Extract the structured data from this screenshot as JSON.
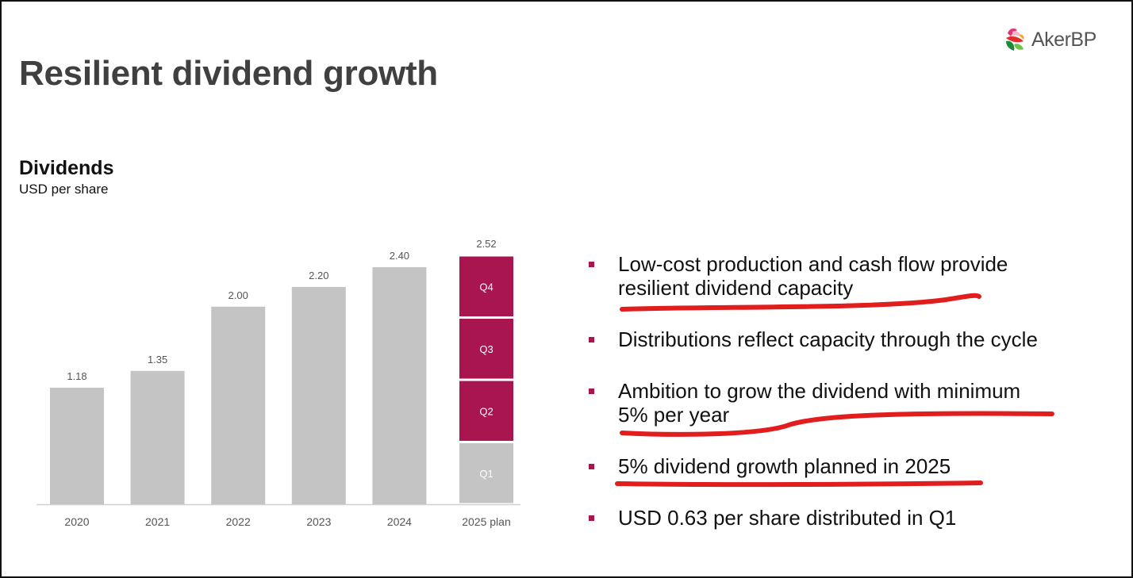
{
  "slide": {
    "title": "Resilient dividend growth",
    "logo_text": "AkerBP"
  },
  "chart_header": {
    "title": "Dividends",
    "subtitle": "USD per share"
  },
  "colors": {
    "bar_gray": "#c4c4c4",
    "bar_accent": "#a8154f",
    "axis_text": "#555555",
    "annotation_red": "#e11d1d",
    "bullet_marker": "#a8154f"
  },
  "chart_data": {
    "type": "bar",
    "title": "Dividends",
    "ylabel": "USD per share",
    "categories": [
      "2020",
      "2021",
      "2022",
      "2023",
      "2024",
      "2025 plan"
    ],
    "values": [
      1.18,
      1.35,
      2.0,
      2.2,
      2.4,
      2.52
    ],
    "value_labels": [
      "1.18",
      "1.35",
      "2.00",
      "2.20",
      "2.40",
      "2.52"
    ],
    "stacked_segments": {
      "category": "2025 plan",
      "series": [
        {
          "name": "Q1",
          "value": 0.63,
          "color": "#c4c4c4"
        },
        {
          "name": "Q2",
          "value": 0.63,
          "color": "#a8154f"
        },
        {
          "name": "Q3",
          "value": 0.63,
          "color": "#a8154f"
        },
        {
          "name": "Q4",
          "value": 0.63,
          "color": "#a8154f"
        }
      ]
    },
    "ylim": [
      0,
      2.52
    ],
    "grid": false,
    "legend": "none"
  },
  "bullets": [
    {
      "text_lines": [
        "Low-cost production and cash flow provide",
        "resilient dividend capacity"
      ],
      "underlined": true
    },
    {
      "text_lines": [
        "Distributions reflect capacity through the cycle"
      ],
      "underlined": false
    },
    {
      "text_lines": [
        "Ambition to grow the dividend with minimum",
        "5% per year"
      ],
      "underlined": true
    },
    {
      "text_lines": [
        "5% dividend growth planned in 2025"
      ],
      "underlined": true
    },
    {
      "text_lines": [
        "USD 0.63 per share distributed in Q1"
      ],
      "underlined": false
    }
  ]
}
